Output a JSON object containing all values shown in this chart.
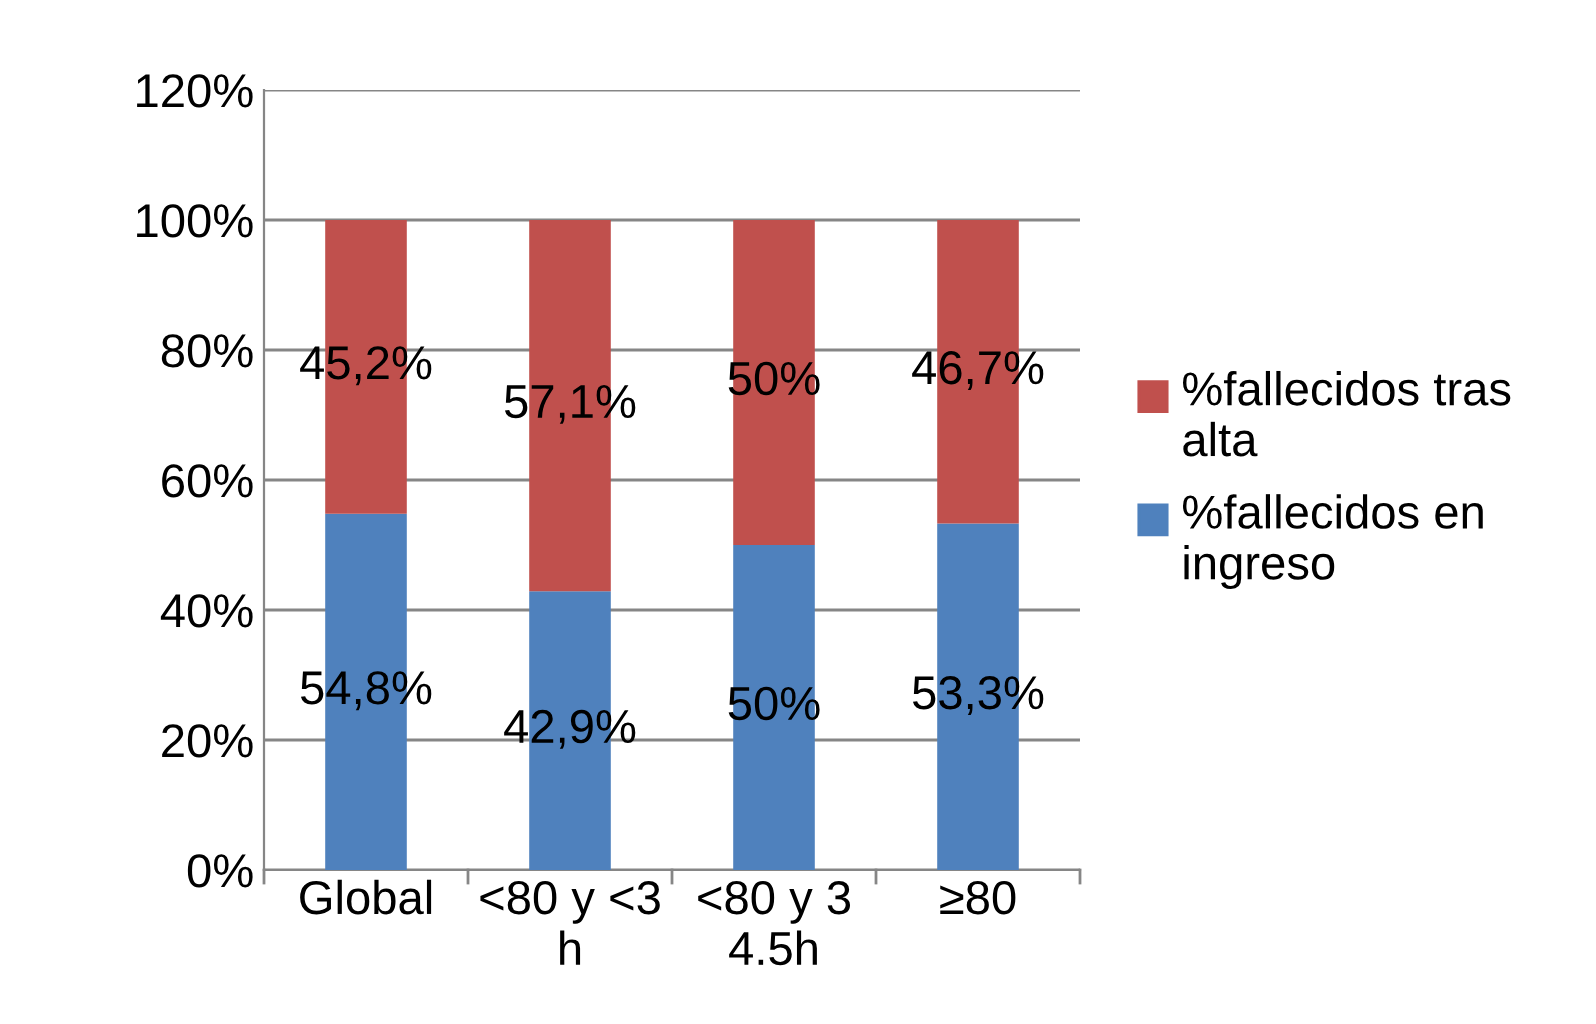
{
  "chart_data": {
    "type": "bar",
    "stacked": true,
    "categories": [
      "Global",
      "<80 y <3\nh",
      "<80 y 3\n4.5h",
      "≥80"
    ],
    "series": [
      {
        "name": "%fallecidos en ingreso",
        "color": "#4f81bd",
        "values": [
          54.8,
          42.9,
          50,
          53.3
        ],
        "value_labels": [
          "54,8%",
          "42,9%",
          "50%",
          "53,3%"
        ]
      },
      {
        "name": "%fallecidos tras alta",
        "color": "#c0504d",
        "values": [
          45.2,
          57.1,
          50,
          46.7
        ],
        "value_labels": [
          "45,2%",
          "57,1%",
          "50%",
          "46,7%"
        ]
      }
    ],
    "ylim": [
      0,
      120
    ],
    "yticks": [
      {
        "value": 0,
        "label": "0%"
      },
      {
        "value": 20,
        "label": "20%"
      },
      {
        "value": 40,
        "label": "40%"
      },
      {
        "value": 60,
        "label": "60%"
      },
      {
        "value": 80,
        "label": "80%"
      },
      {
        "value": 100,
        "label": "100%"
      },
      {
        "value": 120,
        "label": "120%"
      }
    ],
    "grid": "y",
    "legend": "right"
  }
}
